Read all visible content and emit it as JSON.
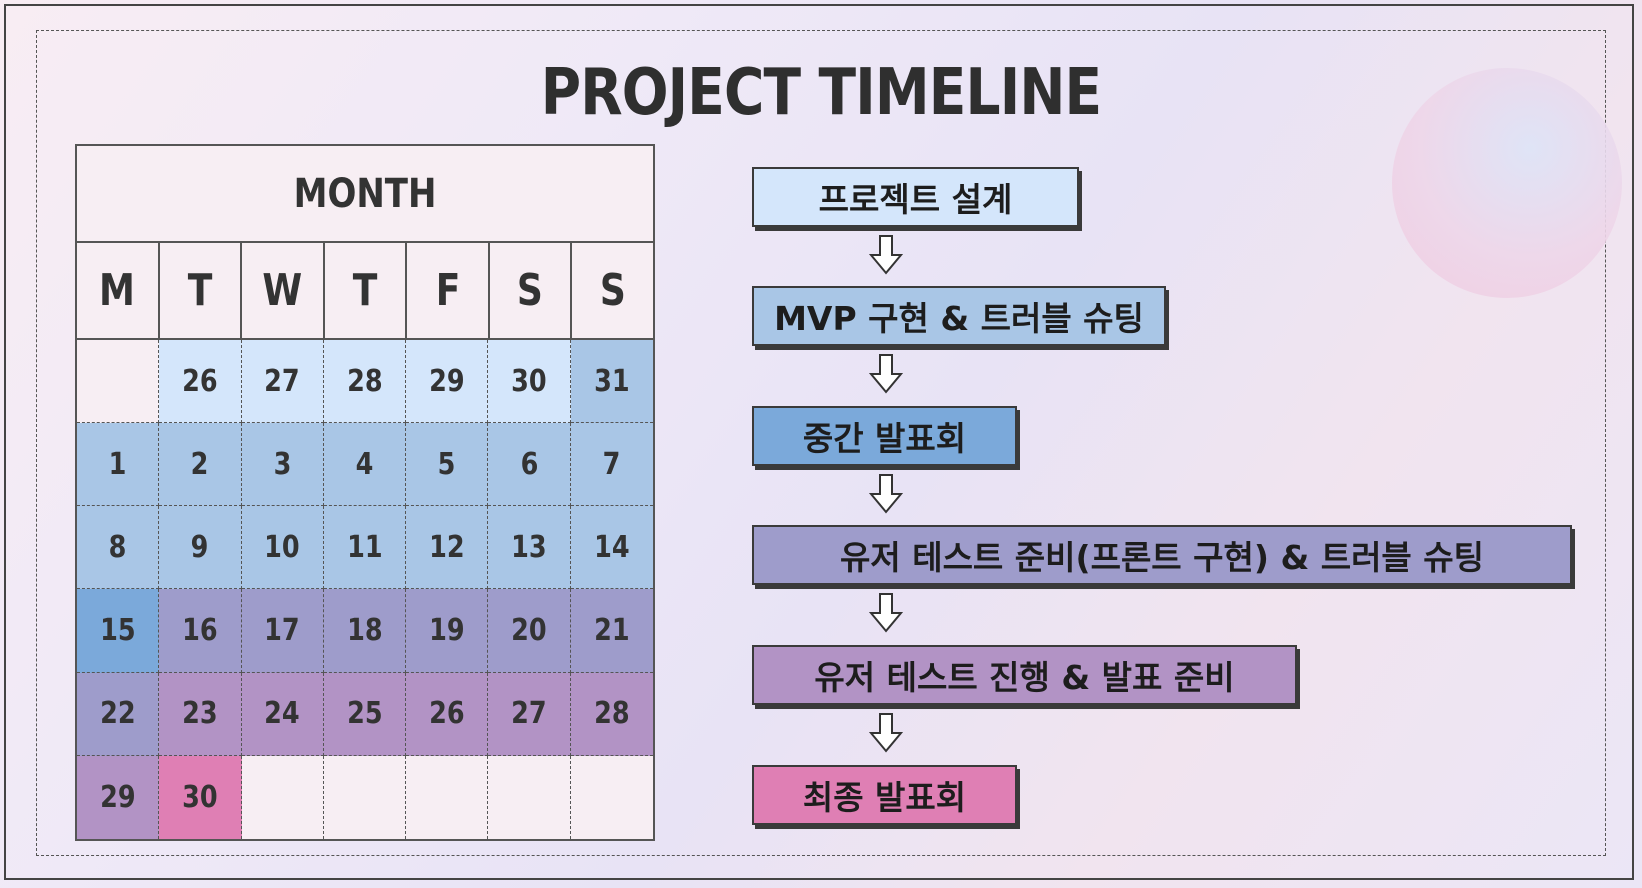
{
  "title": "PROJECT TIMELINE",
  "calendar": {
    "month_label": "MONTH",
    "weekdays": [
      "M",
      "T",
      "W",
      "T",
      "F",
      "S",
      "S"
    ],
    "weeks": [
      [
        "",
        "26",
        "27",
        "28",
        "29",
        "30",
        "31"
      ],
      [
        "1",
        "2",
        "3",
        "4",
        "5",
        "6",
        "7"
      ],
      [
        "8",
        "9",
        "10",
        "11",
        "12",
        "13",
        "14"
      ],
      [
        "15",
        "16",
        "17",
        "18",
        "19",
        "20",
        "21"
      ],
      [
        "22",
        "23",
        "24",
        "25",
        "26",
        "27",
        "28"
      ],
      [
        "29",
        "30",
        "",
        "",
        "",
        "",
        ""
      ]
    ],
    "cell_phase": [
      [
        0,
        1,
        1,
        1,
        1,
        1,
        2
      ],
      [
        2,
        2,
        2,
        2,
        2,
        2,
        2
      ],
      [
        2,
        2,
        2,
        2,
        2,
        2,
        2
      ],
      [
        3,
        4,
        4,
        4,
        4,
        4,
        4
      ],
      [
        4,
        5,
        5,
        5,
        5,
        5,
        5
      ],
      [
        5,
        6,
        0,
        0,
        0,
        0,
        0
      ]
    ]
  },
  "timeline": {
    "steps": [
      {
        "label": "프로젝트 설계",
        "color": "#d4e6fb"
      },
      {
        "label": "MVP 구현 & 트러블 슈팅",
        "color": "#a9c6e6"
      },
      {
        "label": "중간 발표회",
        "color": "#7ba9da"
      },
      {
        "label": "유저 테스트 준비(프론트 구현) & 트러블 슈팅",
        "color": "#9e9ccb"
      },
      {
        "label": "유저 테스트 진행 & 발표 준비",
        "color": "#b293c5"
      },
      {
        "label": "최종 발표회",
        "color": "#df7fb4"
      }
    ]
  },
  "phase_colors": [
    "#f7eef3",
    "#d4e6fb",
    "#a9c6e6",
    "#7ba9da",
    "#9e9ccb",
    "#b293c5",
    "#df7fb4"
  ]
}
